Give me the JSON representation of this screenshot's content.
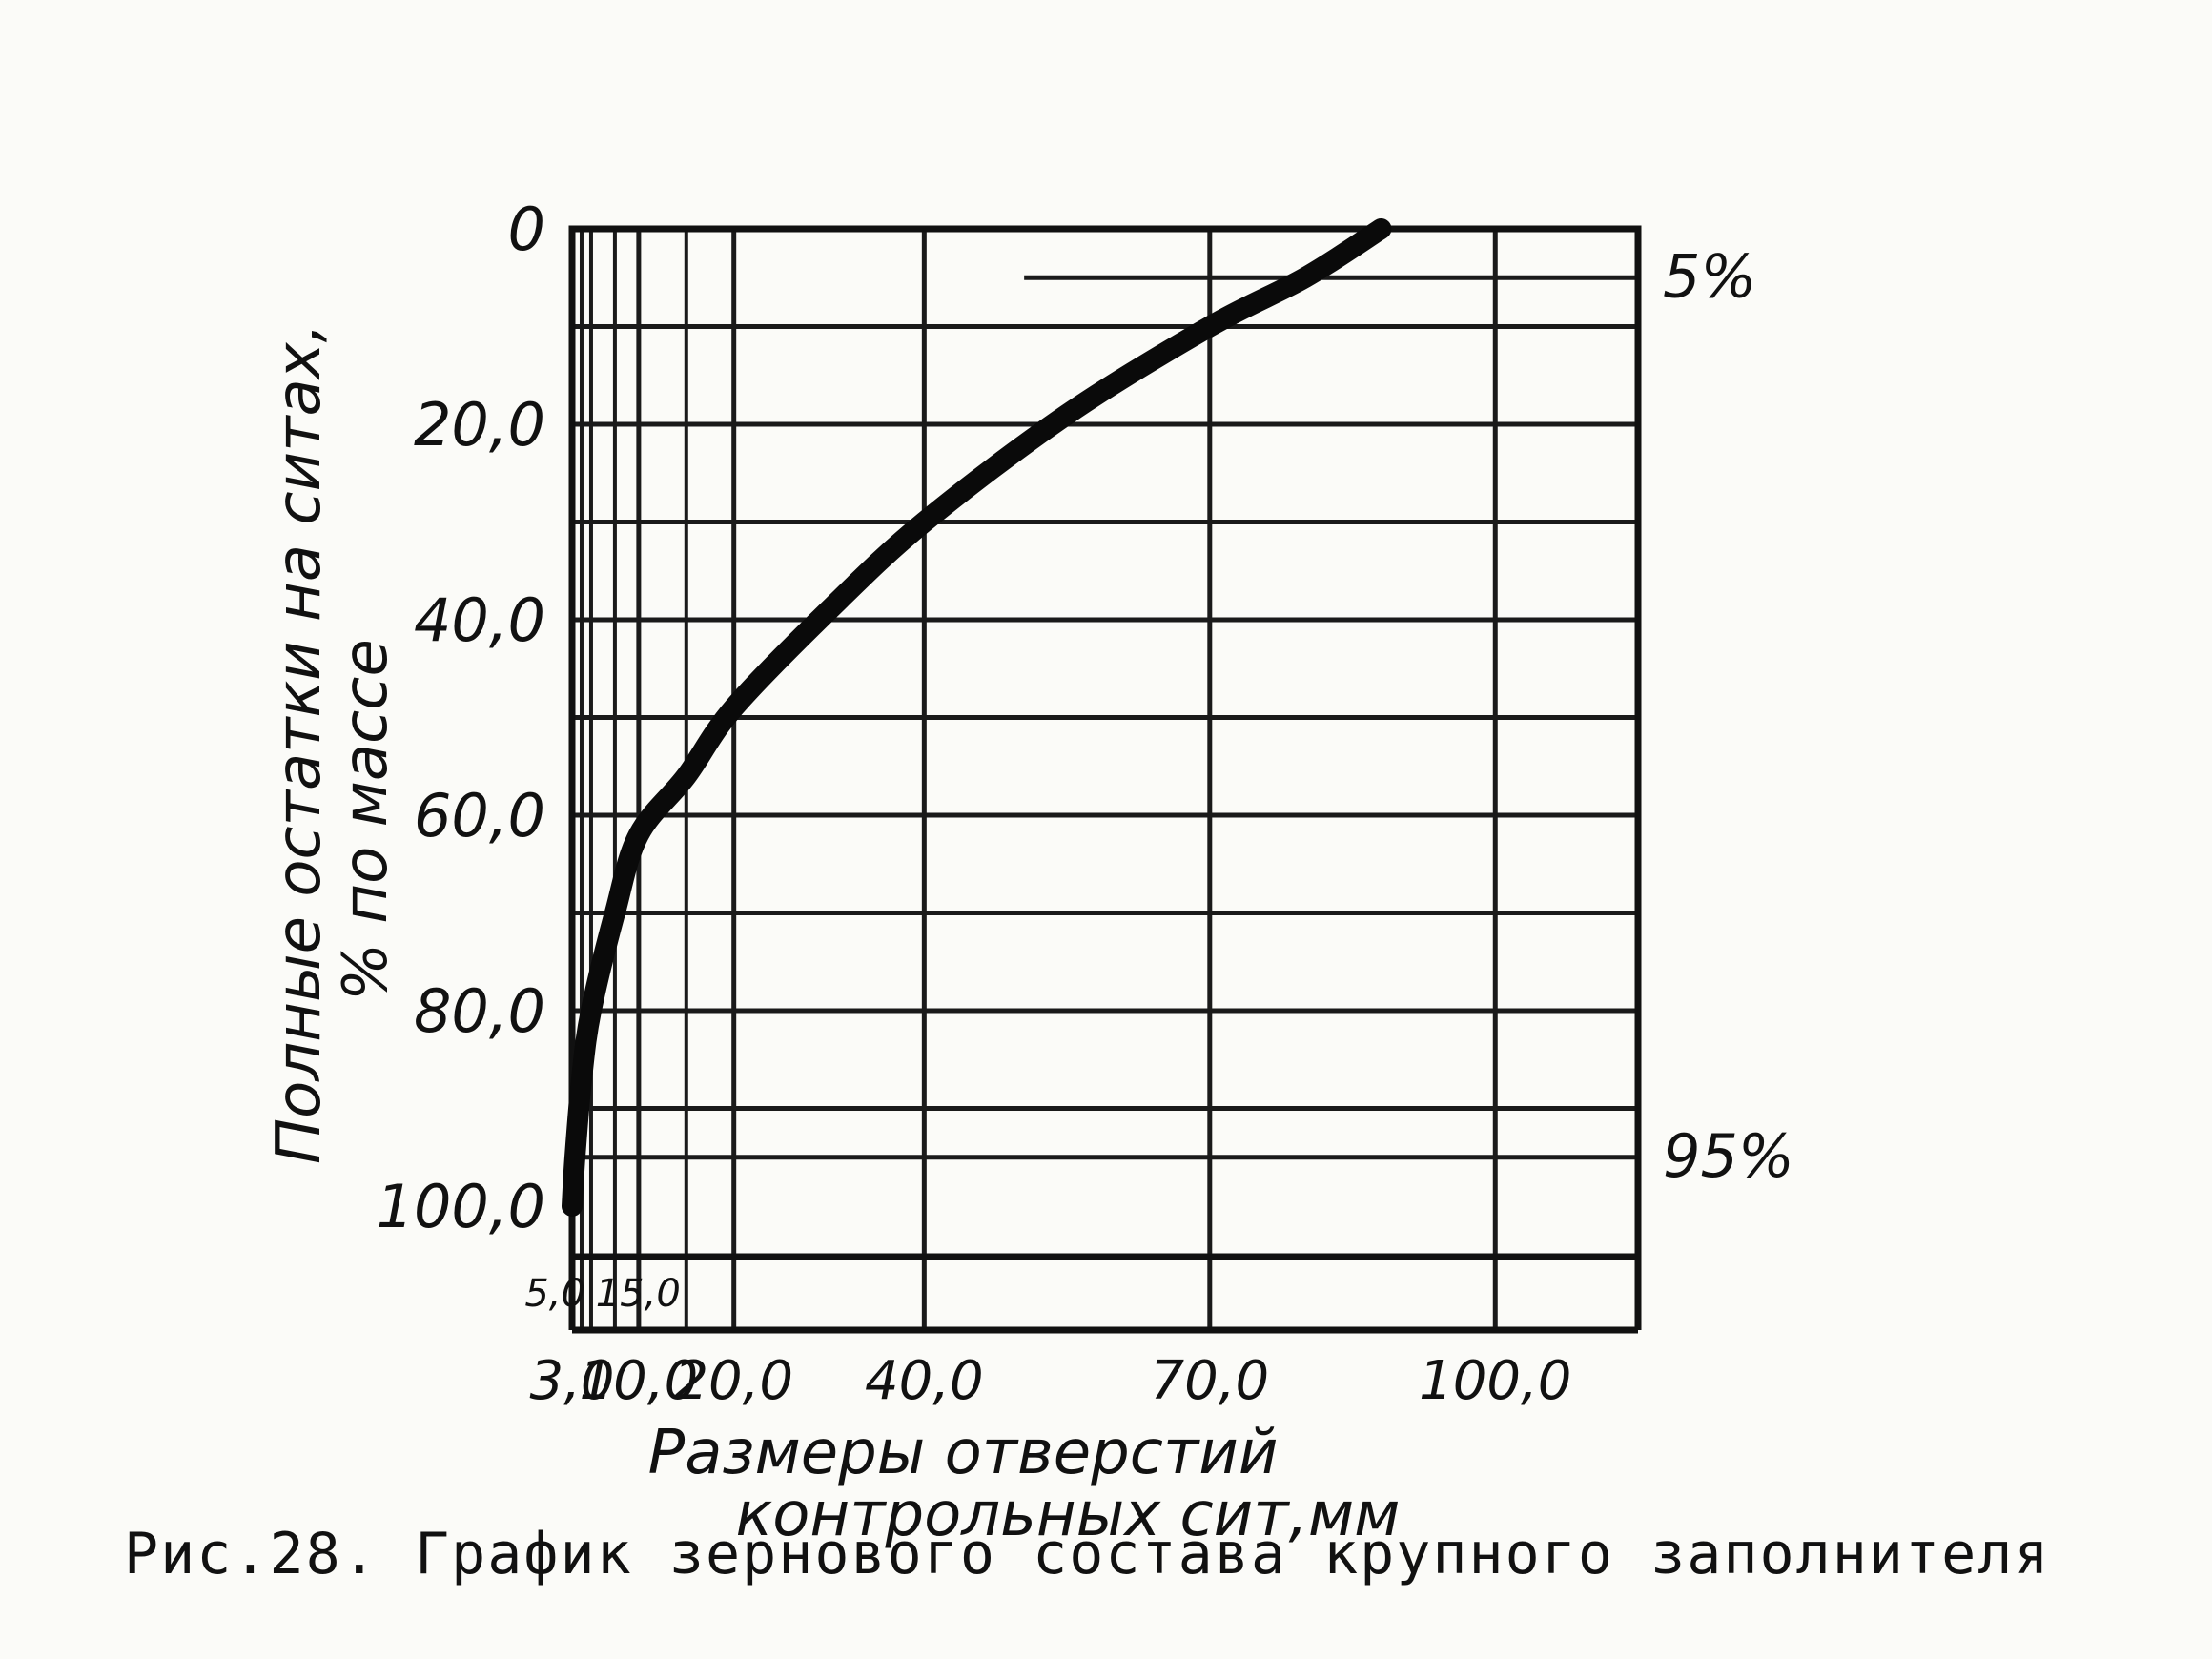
{
  "chart_data": {
    "type": "line",
    "title": "",
    "xlabel": [
      "Размеры отверстий",
      "контрольных сит,мм"
    ],
    "ylabel": [
      "Полные остатки на ситах,",
      "% по массе"
    ],
    "xlim": [
      3.0,
      115.0
    ],
    "ylim": [
      0.0,
      100.0
    ],
    "y_inverted": true,
    "grid": true,
    "x_ticks_major": [
      {
        "value": 3.0,
        "label": "3,0"
      },
      {
        "value": 10.0,
        "label": "10,0"
      },
      {
        "value": 20.0,
        "label": "20,0"
      },
      {
        "value": 40.0,
        "label": "40,0"
      },
      {
        "value": 70.0,
        "label": "70,0"
      },
      {
        "value": 100.0,
        "label": "100,0"
      }
    ],
    "x_ticks_minor": [
      {
        "value": 5.0,
        "label": "5,0"
      },
      {
        "value": 15.0,
        "label": "15,0"
      }
    ],
    "y_ticks": [
      {
        "value": 0,
        "label": "0"
      },
      {
        "value": 20,
        "label": "20,0"
      },
      {
        "value": 40,
        "label": "40,0"
      },
      {
        "value": 60,
        "label": "60,0"
      },
      {
        "value": 80,
        "label": "80,0"
      },
      {
        "value": 100,
        "label": "100,0"
      }
    ],
    "reference_lines": [
      {
        "y": 5,
        "label": "5%"
      },
      {
        "y": 95,
        "label": "95%"
      }
    ],
    "series": [
      {
        "x": [
          3.0,
          3.3,
          4.0,
          5.0,
          7.5,
          10.0,
          15.0,
          20.0,
          30.0,
          40.0,
          55.0,
          70.0,
          80.0,
          88.0
        ],
        "y": [
          100,
          95,
          87,
          80,
          70,
          62,
          56,
          49,
          39,
          30,
          19,
          10,
          5,
          0
        ]
      }
    ]
  },
  "caption": "Рис.28. График зернового состава крупного заполнителя"
}
